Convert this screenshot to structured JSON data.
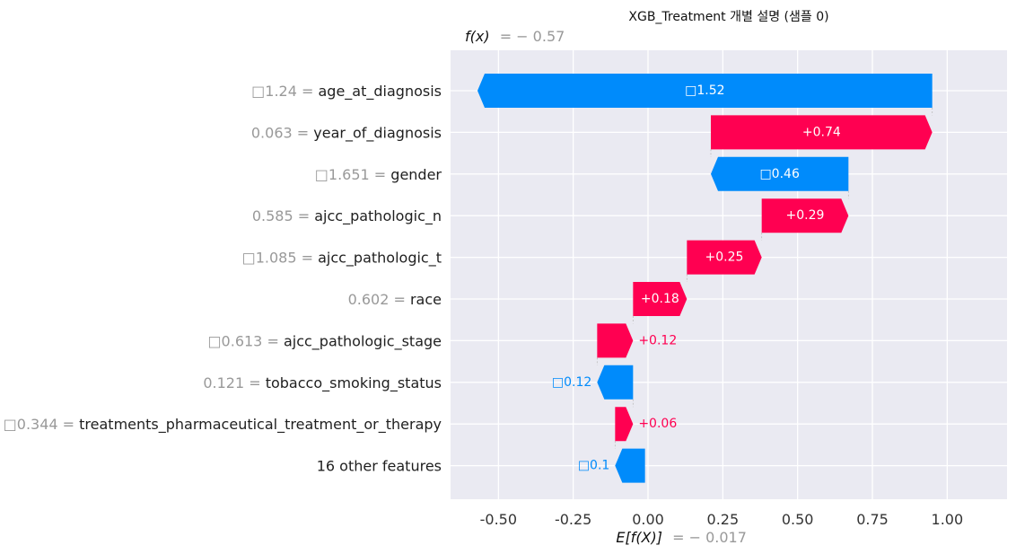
{
  "chart_data": {
    "type": "waterfall",
    "title": "XGB_Treatment 개별 설명 (샘플 0)",
    "fx_label": "f(x)",
    "fx_value_text": "= − 0.57",
    "fx": -0.57,
    "base_label": "E[f(X)]",
    "base_value_text": "= − 0.017",
    "base_value": -0.017,
    "xlim": [
      -0.66,
      1.2
    ],
    "xticks": [
      -0.5,
      -0.25,
      0.0,
      0.25,
      0.5,
      0.75,
      1.0
    ],
    "xtick_labels": [
      "-0.50",
      "-0.25",
      "0.00",
      "0.25",
      "0.50",
      "0.75",
      "1.00"
    ],
    "grid": true,
    "colors": {
      "positive": "#ff0051",
      "negative": "#008bfb",
      "background": "#eaeaf2",
      "value_text": "#999999"
    },
    "features": [
      {
        "name": "age_at_diagnosis",
        "value": "□1.24",
        "contribution": -1.52,
        "label": "□1.52"
      },
      {
        "name": "year_of_diagnosis",
        "value": "0.063",
        "contribution": 0.74,
        "label": "+0.74"
      },
      {
        "name": "gender",
        "value": "□1.651",
        "contribution": -0.46,
        "label": "□0.46"
      },
      {
        "name": "ajcc_pathologic_n",
        "value": "0.585",
        "contribution": 0.29,
        "label": "+0.29"
      },
      {
        "name": "ajcc_pathologic_t",
        "value": "□1.085",
        "contribution": 0.25,
        "label": "+0.25"
      },
      {
        "name": "race",
        "value": "0.602",
        "contribution": 0.18,
        "label": "+0.18"
      },
      {
        "name": "ajcc_pathologic_stage",
        "value": "□0.613",
        "contribution": 0.12,
        "label": "+0.12"
      },
      {
        "name": "tobacco_smoking_status",
        "value": "0.121",
        "contribution": -0.12,
        "label": "□0.12"
      },
      {
        "name": "treatments_pharmaceutical_treatment_or_therapy",
        "value": "□0.344",
        "contribution": 0.06,
        "label": "+0.06"
      },
      {
        "name": "16 other features",
        "value": "",
        "contribution": -0.1,
        "label": "□0.1"
      }
    ]
  }
}
